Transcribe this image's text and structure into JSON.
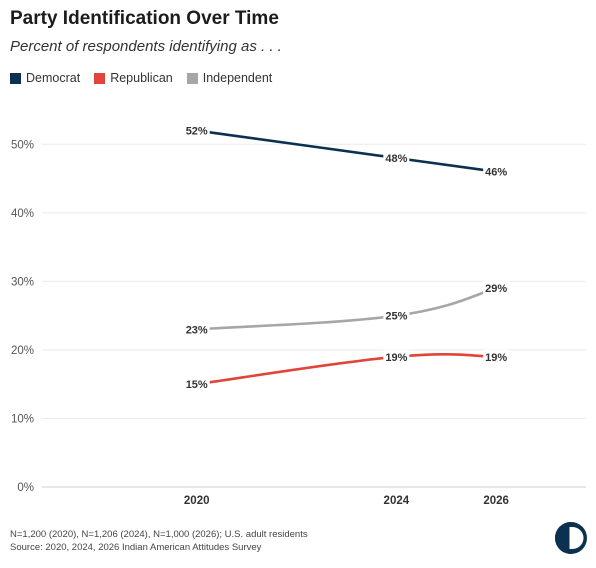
{
  "title": "Party Identification Over Time",
  "subtitle": "Percent of respondents identifying as . . .",
  "footnote_line1": "N=1,200 (2020), N=1,206 (2024), N=1,000 (2026); U.S. adult residents",
  "footnote_line2": "Source: 2020, 2024, 2026 Indian American Attitudes Survey",
  "chart_data": {
    "type": "line",
    "x": [
      2020,
      2024,
      2026
    ],
    "xticks": [
      "2020",
      "2024",
      "2026"
    ],
    "xlim": [
      2016.9,
      2027.8
    ],
    "ylim": [
      0,
      55
    ],
    "yticks": [
      0,
      10,
      20,
      30,
      40,
      50
    ],
    "ytick_labels": [
      "0%",
      "10%",
      "20%",
      "30%",
      "40%",
      "50%"
    ],
    "grid": true,
    "legend_position": "top-left",
    "series": [
      {
        "name": "Democrat",
        "color": "#0c3150",
        "values": [
          52,
          48,
          46
        ],
        "labels": [
          "52%",
          "48%",
          "46%"
        ]
      },
      {
        "name": "Republican",
        "color": "#e0443a",
        "values": [
          15,
          19,
          19
        ],
        "labels": [
          "15%",
          "19%",
          "19%"
        ]
      },
      {
        "name": "Independent",
        "color": "#a6a6a8",
        "values": [
          23,
          25,
          29
        ],
        "labels": [
          "23%",
          "25%",
          "29%"
        ]
      }
    ]
  }
}
